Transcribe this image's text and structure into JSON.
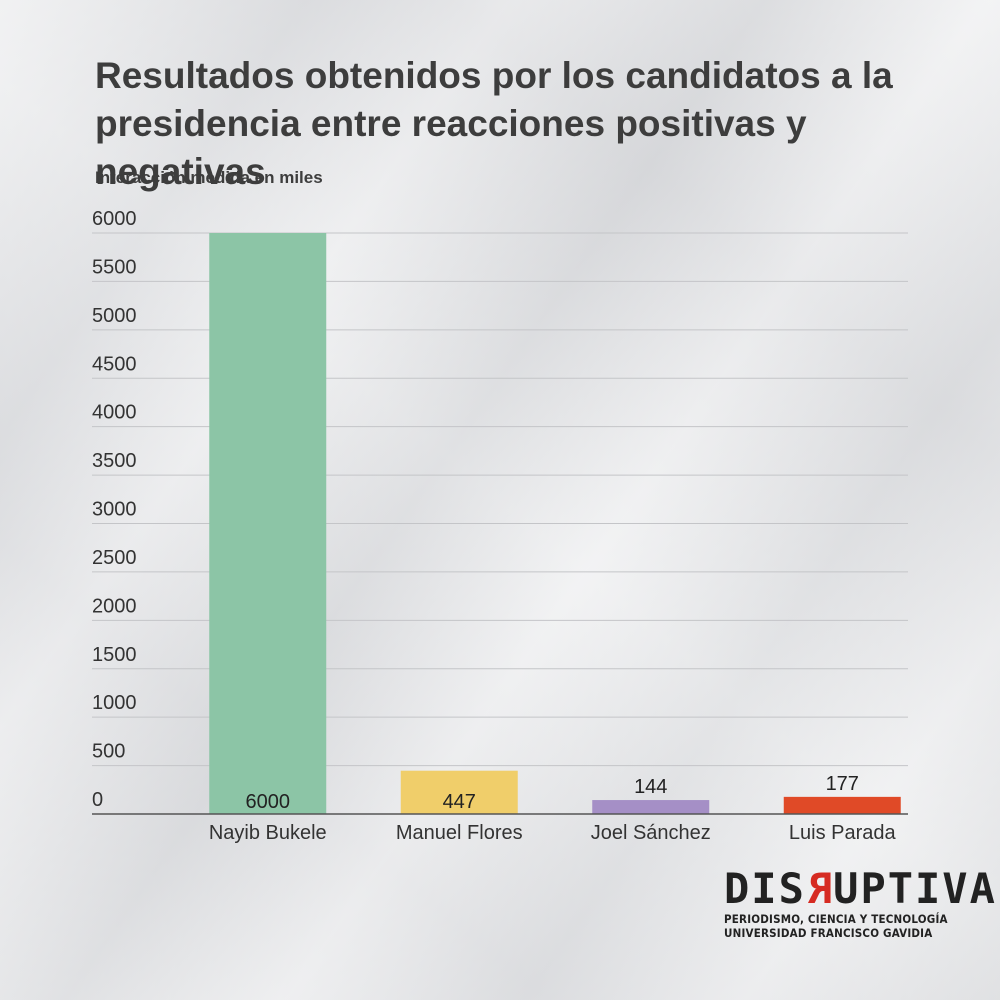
{
  "chart_data": {
    "type": "bar",
    "title": "Resultados obtenidos por los candidatos a la presidencia entre reacciones positivas y negativas",
    "subtitle": "Interacción medida en miles",
    "xlabel": "",
    "ylabel": "",
    "categories": [
      "Nayib Bukele",
      "Manuel Flores",
      "Joel Sánchez",
      "Luis Parada"
    ],
    "values": [
      6000,
      447,
      144,
      177
    ],
    "data_labels": [
      "6000",
      "447",
      "144",
      "177"
    ],
    "colors": [
      "#8cc5a6",
      "#f0ce6a",
      "#a58fc6",
      "#e04a27"
    ],
    "ylim": [
      0,
      6000
    ],
    "yticks": [
      0,
      500,
      1000,
      1500,
      2000,
      2500,
      3000,
      3500,
      4000,
      4500,
      5000,
      5500,
      6000
    ],
    "grid": true,
    "legend": "none"
  },
  "logo": {
    "word_start": "DIS",
    "word_r": "R",
    "word_end": "UPTIVA",
    "line1": "PERIODISMO, CIENCIA Y TECNOLOGÍA",
    "line2": "UNIVERSIDAD FRANCISCO GAVIDIA"
  }
}
